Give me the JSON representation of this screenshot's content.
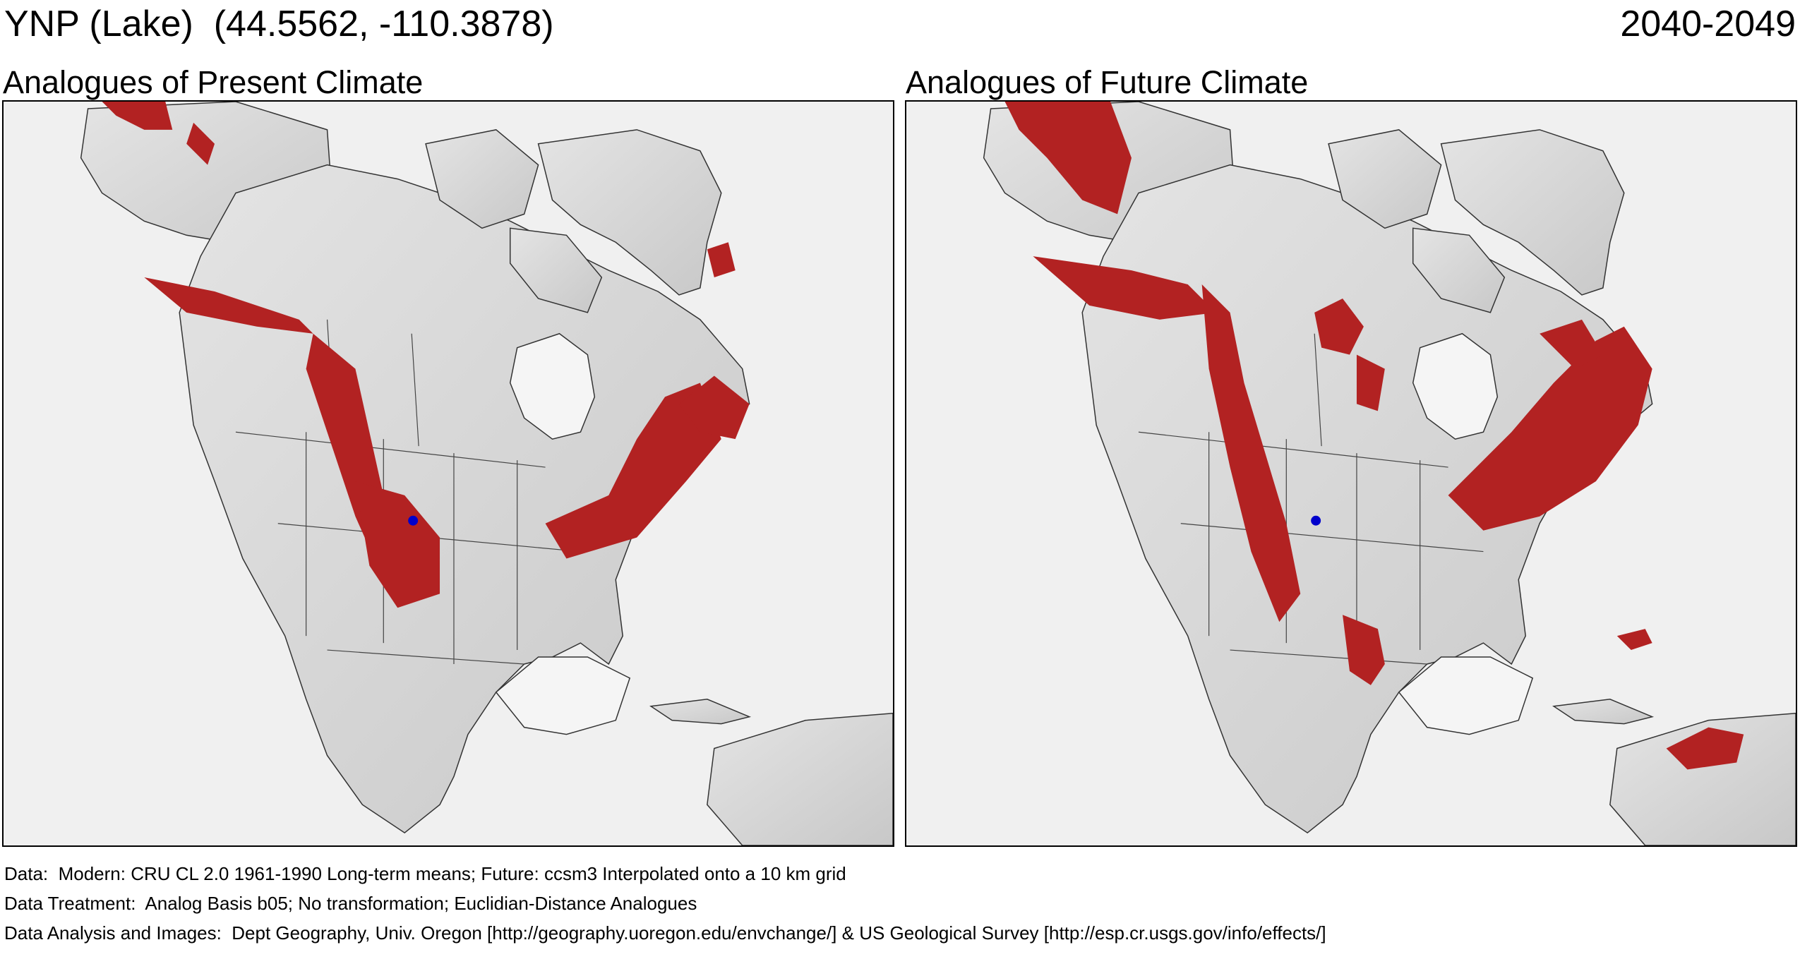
{
  "header": {
    "site": "YNP (Lake)",
    "coords": "(44.5562, -110.3878)",
    "period": "2040-2049"
  },
  "panels": [
    {
      "title": "Analogues of Present Climate"
    },
    {
      "title": "Analogues of Future Climate"
    }
  ],
  "colors": {
    "analogue": "#b22222",
    "land": "#d9d9d9",
    "water": "#f0f0f0",
    "site_marker": "#0000cc"
  },
  "footer": {
    "data": "Data:  Modern: CRU CL 2.0 1961-1990 Long-term means; Future: ccsm3 Interpolated onto a 10 km grid",
    "treatment": "Data Treatment:  Analog Basis b05; No transformation; Euclidian-Distance Analogues",
    "analysis": "Data Analysis and Images:  Dept Geography, Univ. Oregon [http://geography.uoregon.edu/envchange/] & US Geological Survey [http://esp.cr.usgs.gov/info/effects/]"
  }
}
